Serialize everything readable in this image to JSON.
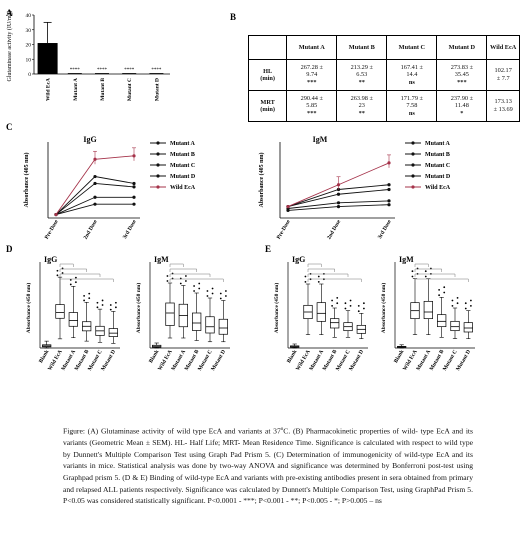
{
  "panels": {
    "A": "A",
    "B": "B",
    "C": "C",
    "D": "D",
    "E": "E"
  },
  "chartA": {
    "chart_data": {
      "type": "bar",
      "ylabel": "Glutaminase activity (IU/mg)",
      "categories": [
        "Wild EcA",
        "Mutant A",
        "Mutant B",
        "Mutant C",
        "Mutant D"
      ],
      "values": [
        21,
        0.6,
        0.6,
        0.6,
        0.6
      ],
      "errors": [
        14,
        0,
        0,
        0,
        0
      ],
      "yticks": [
        "0",
        "10",
        "20",
        "30",
        "40"
      ],
      "ylim": [
        0,
        40
      ],
      "sig": [
        "",
        "****",
        "****",
        "****",
        "****"
      ]
    }
  },
  "tableB": {
    "headers": [
      "",
      "Mutant A",
      "Mutant B",
      "Mutant C",
      "Mutant D",
      "Wild EcA"
    ],
    "rows": [
      {
        "label1": "HL",
        "label2": "(min)",
        "cells": [
          [
            "267.28 ±",
            "9.74",
            "***"
          ],
          [
            "213.29 ±",
            "6.53",
            "**"
          ],
          [
            "167.41 ±",
            "14.4",
            "ns"
          ],
          [
            "273.83 ±",
            "35.45",
            "***"
          ],
          [
            "102.17",
            "± 7.7",
            ""
          ]
        ]
      },
      {
        "label1": "MRT",
        "label2": "(min)",
        "cells": [
          [
            "290.44 ±",
            "5.85",
            "***"
          ],
          [
            "263.98 ±",
            "23",
            "**"
          ],
          [
            "171.79 ±",
            "7.58",
            "ns"
          ],
          [
            "237.90 ±",
            "11.48",
            "*"
          ],
          [
            "173.13",
            "± 13.69",
            ""
          ]
        ]
      }
    ]
  },
  "chartC": [
    {
      "type": "line",
      "title": "IgG",
      "ylabel": "Absorbance (405 nm)",
      "categories": [
        "Pre-Dose",
        "2nd Dose",
        "3rd Dose"
      ],
      "series": [
        {
          "name": "Mutant A",
          "values": [
            0.01,
            0.12,
            0.1
          ],
          "color": "#111111"
        },
        {
          "name": "Mutant B",
          "values": [
            0.01,
            0.1,
            0.09
          ],
          "color": "#111111"
        },
        {
          "name": "Mutant C",
          "values": [
            0.01,
            0.06,
            0.06
          ],
          "color": "#111111"
        },
        {
          "name": "Mutant D",
          "values": [
            0.01,
            0.04,
            0.04
          ],
          "color": "#111111"
        },
        {
          "name": "Wild EcA",
          "values": [
            0.01,
            0.17,
            0.18
          ],
          "color": "#a5334a"
        }
      ],
      "ylim": [
        0,
        0.22
      ]
    },
    {
      "type": "line",
      "title": "IgM",
      "ylabel": "Absorbance (405 nm)",
      "categories": [
        "Pre-Dose",
        "2nd Dose",
        "3rd Dose"
      ],
      "series": [
        {
          "name": "Mutant A",
          "values": [
            0.012,
            0.03,
            0.035
          ],
          "color": "#111111"
        },
        {
          "name": "Mutant B",
          "values": [
            0.012,
            0.025,
            0.03
          ],
          "color": "#111111"
        },
        {
          "name": "Mutant C",
          "values": [
            0.01,
            0.016,
            0.018
          ],
          "color": "#111111"
        },
        {
          "name": "Mutant D",
          "values": [
            0.008,
            0.012,
            0.014
          ],
          "color": "#111111"
        },
        {
          "name": "Wild EcA",
          "values": [
            0.012,
            0.035,
            0.058
          ],
          "color": "#a5334a"
        }
      ],
      "ylim": [
        0,
        0.08
      ]
    }
  ],
  "box_panels": [
    {
      "title": "IgG",
      "ylabel": "Absorbance (450 nm)",
      "categories": [
        "Blank",
        "Wild EcA",
        "Mutant A",
        "Mutant B",
        "Mutant C",
        "Mutant D"
      ],
      "boxes": [
        [
          0.0,
          0.05,
          0.09,
          0.14,
          0.3
        ],
        [
          0.4,
          1.3,
          1.55,
          1.9,
          3.1
        ],
        [
          0.45,
          0.95,
          1.2,
          1.55,
          2.7
        ],
        [
          0.3,
          0.75,
          0.95,
          1.15,
          2.0
        ],
        [
          0.25,
          0.55,
          0.75,
          0.95,
          1.7
        ],
        [
          0.2,
          0.5,
          0.65,
          0.85,
          1.6
        ]
      ],
      "ymax": 3.5
    },
    {
      "title": "IgM",
      "ylabel": "Absorbance (450 nm)",
      "categories": [
        "Blank",
        "Wild EcA",
        "Mutant A",
        "Mutant B",
        "Mutant C",
        "Mutant D"
      ],
      "boxes": [
        [
          0.0,
          0.03,
          0.07,
          0.11,
          0.2
        ],
        [
          0.4,
          0.9,
          1.4,
          1.8,
          2.6
        ],
        [
          0.4,
          0.85,
          1.3,
          1.75,
          2.5
        ],
        [
          0.3,
          0.7,
          1.0,
          1.4,
          2.2
        ],
        [
          0.25,
          0.6,
          0.85,
          1.25,
          2.0
        ],
        [
          0.25,
          0.55,
          0.8,
          1.15,
          1.9
        ]
      ],
      "ymax": 3.2
    },
    {
      "title": "IgG",
      "ylabel": "Absorbance (450 nm)",
      "categories": [
        "Blank",
        "Wild EcA",
        "Mutant A",
        "Mutant B",
        "Mutant C",
        "Mutant D"
      ],
      "boxes": [
        [
          0.0,
          0.03,
          0.05,
          0.08,
          0.15
        ],
        [
          0.5,
          1.1,
          1.35,
          1.6,
          2.4
        ],
        [
          0.5,
          1.0,
          1.3,
          1.7,
          2.4
        ],
        [
          0.4,
          0.75,
          0.95,
          1.1,
          1.5
        ],
        [
          0.4,
          0.65,
          0.8,
          0.95,
          1.4
        ],
        [
          0.35,
          0.55,
          0.7,
          0.85,
          1.3
        ]
      ],
      "ymax": 3.0
    },
    {
      "title": "IgM",
      "ylabel": "Absorbance (450 nm)",
      "categories": [
        "Blank",
        "Wild EcA",
        "Mutant A",
        "Mutant B",
        "Mutant C",
        "Mutant D"
      ],
      "boxes": [
        [
          0.0,
          0.02,
          0.04,
          0.06,
          0.12
        ],
        [
          0.5,
          1.1,
          1.4,
          1.7,
          2.6
        ],
        [
          0.5,
          1.1,
          1.35,
          1.75,
          2.6
        ],
        [
          0.4,
          0.8,
          1.0,
          1.25,
          1.9
        ],
        [
          0.35,
          0.65,
          0.8,
          1.0,
          1.5
        ],
        [
          0.35,
          0.6,
          0.75,
          0.95,
          1.4
        ]
      ],
      "ymax": 3.0
    }
  ],
  "caption": {
    "p1": "Figure: (A) Glutaminase activity of wild type EcA and variants at 37",
    "p1deg": "o",
    "p2": "C. (B) Pharmacokinetic properties of wild- type EcA and its variants (Geometric Mean ± SEM). HL- Half Life; MRT- Mean Residence Time. Significance is calculated with respect to wild type by Dunnett's Multiple Comparison Test using Graph Pad Prism 5. (C) Determination of immunogenicity of wild-type EcA and its variants in mice. Statistical analysis was done by two-way ANOVA and significance was determined by Bonferroni post-test using Graphpad prism 5. (D & E) Binding of wild-type EcA and variants with pre-existing antibodies present in sera obtained from primary and relapsed ALL patients respectively. Significance was calculated by Dunnett's Multiple Comparison Test, using GraphPad Prism 5. P<0.05 was considered statistically significant. P<0.0001 - ***; P<0.001 - **; P<0.005 - *; P>0.005 – ns"
  }
}
